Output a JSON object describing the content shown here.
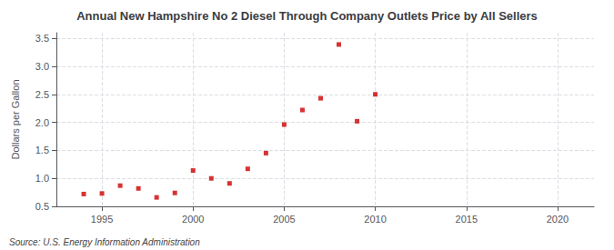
{
  "chart_data": {
    "type": "scatter",
    "title": "Annual New Hampshire No 2 Diesel Through Company Outlets Price by All Sellers",
    "ylabel": "Dollars per Gallon",
    "annotations": [
      "Source: U.S. Energy Information Administration"
    ],
    "x": [
      1994,
      1995,
      1996,
      1997,
      1998,
      1999,
      2000,
      2001,
      2002,
      2003,
      2004,
      2005,
      2006,
      2007,
      2008,
      2009,
      2010
    ],
    "values": [
      0.72,
      0.73,
      0.87,
      0.82,
      0.66,
      0.74,
      1.14,
      1.0,
      0.91,
      1.17,
      1.45,
      1.96,
      2.22,
      2.43,
      3.39,
      2.02,
      2.5
    ],
    "color": "#cc0000",
    "marker": "square",
    "xlim": [
      1992.5,
      2022
    ],
    "xticks": [
      1995,
      2000,
      2005,
      2010,
      2015,
      2020
    ],
    "ylim": [
      0.5,
      3.6
    ],
    "yticks": [
      0.5,
      {
        "value": 1.0,
        "label": "1.0"
      },
      1.5,
      {
        "value": 2.0,
        "label": "2.0"
      },
      2.5,
      {
        "value": 3.0,
        "label": "3.0"
      },
      3.5
    ],
    "grid": true
  }
}
